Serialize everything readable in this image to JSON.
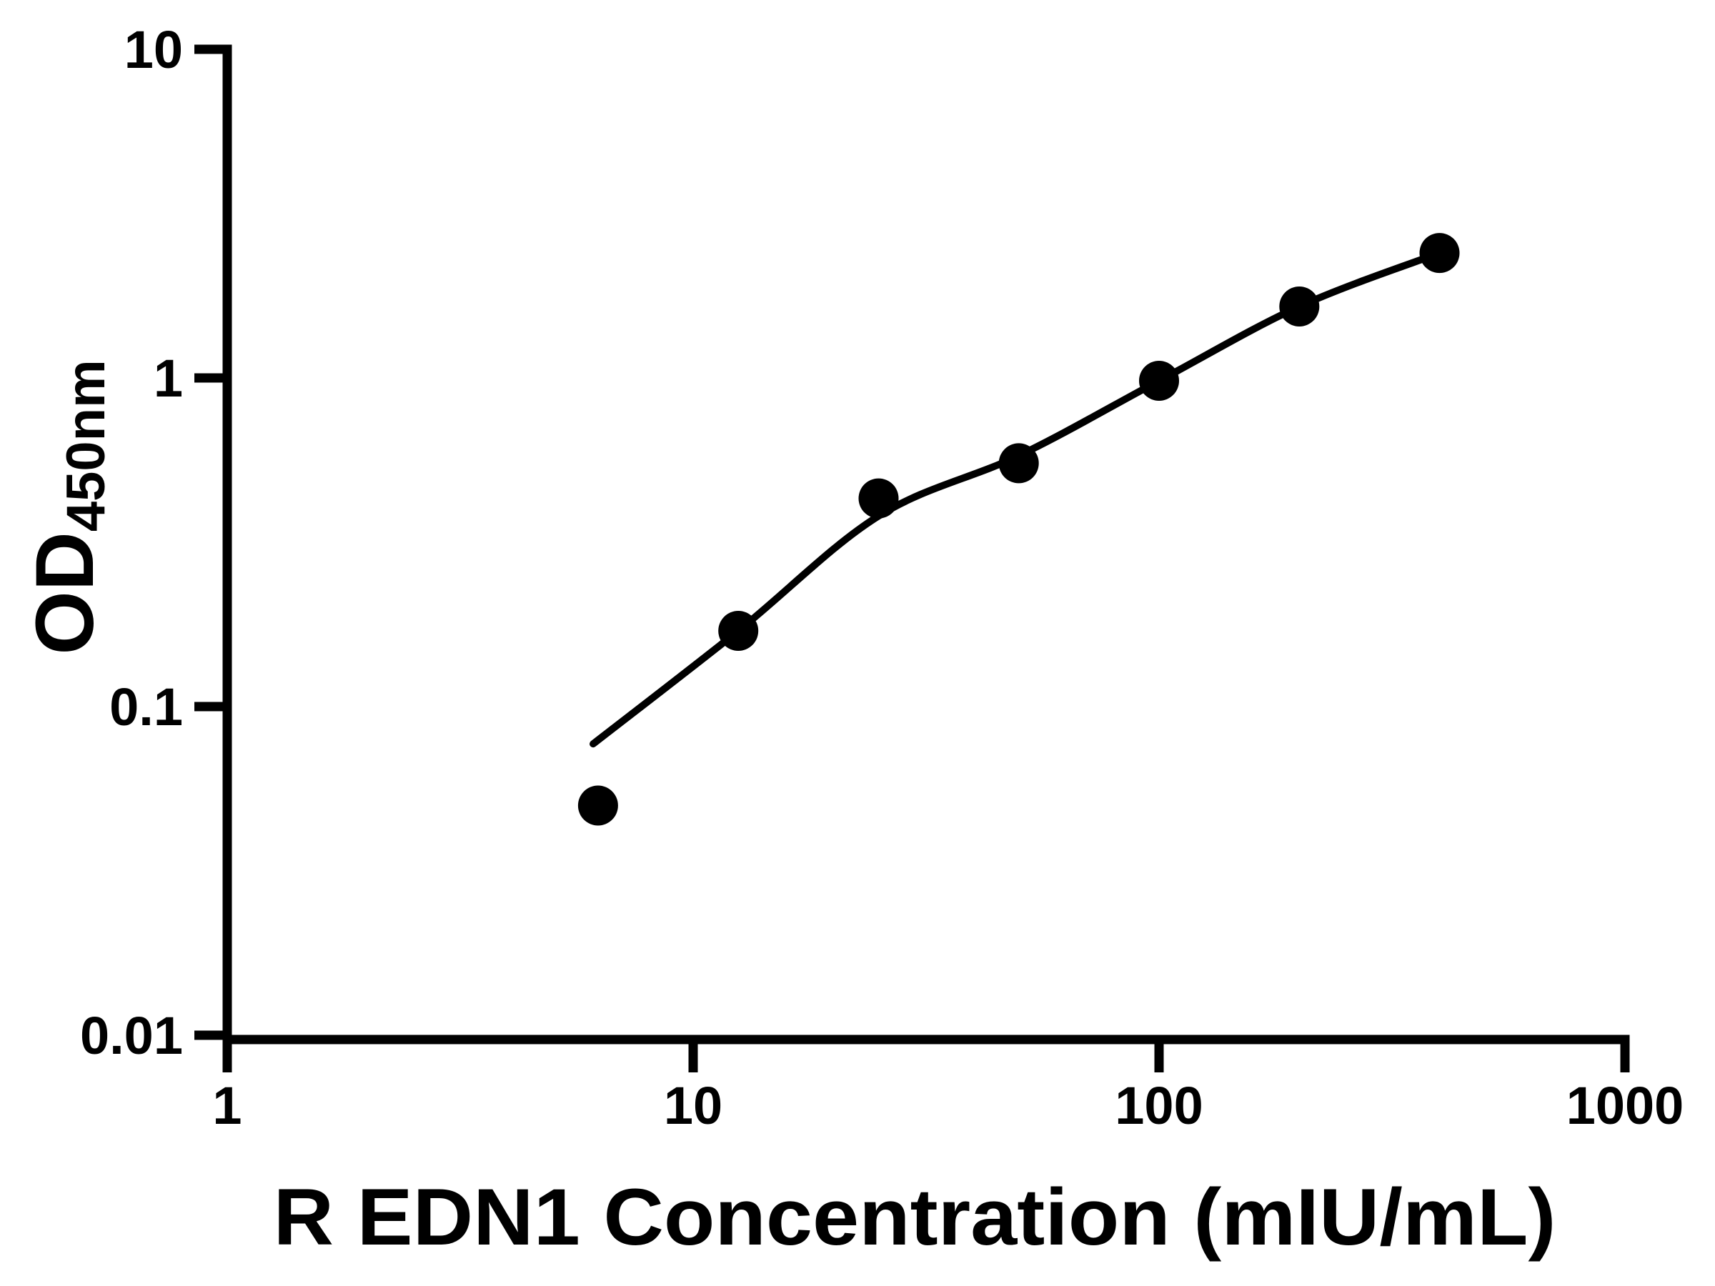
{
  "figure": {
    "kind": "elisa-standard-curve",
    "background_color": "#ffffff",
    "ink_color": "#000000"
  },
  "chart_data": {
    "type": "scatter",
    "title": "",
    "xlabel": "R EDN1 Concentration (mIU/mL)",
    "ylabel": "OD",
    "ylabel_subscript": "450nm",
    "x_scale": "log",
    "y_scale": "log",
    "xlim": [
      1,
      1000
    ],
    "ylim": [
      0.01,
      10
    ],
    "x_ticks": [
      1,
      10,
      100,
      1000
    ],
    "x_tick_labels": [
      "1",
      "10",
      "100",
      "1000"
    ],
    "y_ticks": [
      0.01,
      0.1,
      1,
      10
    ],
    "y_tick_labels": [
      "0.01",
      "0.1",
      "1",
      "10"
    ],
    "grid": false,
    "legend": null,
    "series": [
      {
        "name": "fit-curve",
        "type": "line",
        "color": "#000000",
        "points": [
          {
            "x": 6.1,
            "y": 0.077
          },
          {
            "x": 12.5,
            "y": 0.17
          },
          {
            "x": 25,
            "y": 0.38
          },
          {
            "x": 50,
            "y": 0.58
          },
          {
            "x": 100,
            "y": 0.98
          },
          {
            "x": 200,
            "y": 1.65
          },
          {
            "x": 400,
            "y": 2.4
          }
        ]
      },
      {
        "name": "standard-points",
        "type": "scatter",
        "marker": "circle",
        "color": "#000000",
        "points": [
          {
            "x": 6.25,
            "y": 0.05
          },
          {
            "x": 12.5,
            "y": 0.17
          },
          {
            "x": 25,
            "y": 0.43
          },
          {
            "x": 50,
            "y": 0.55
          },
          {
            "x": 100,
            "y": 0.98
          },
          {
            "x": 200,
            "y": 1.65
          },
          {
            "x": 400,
            "y": 2.4
          }
        ]
      }
    ]
  }
}
